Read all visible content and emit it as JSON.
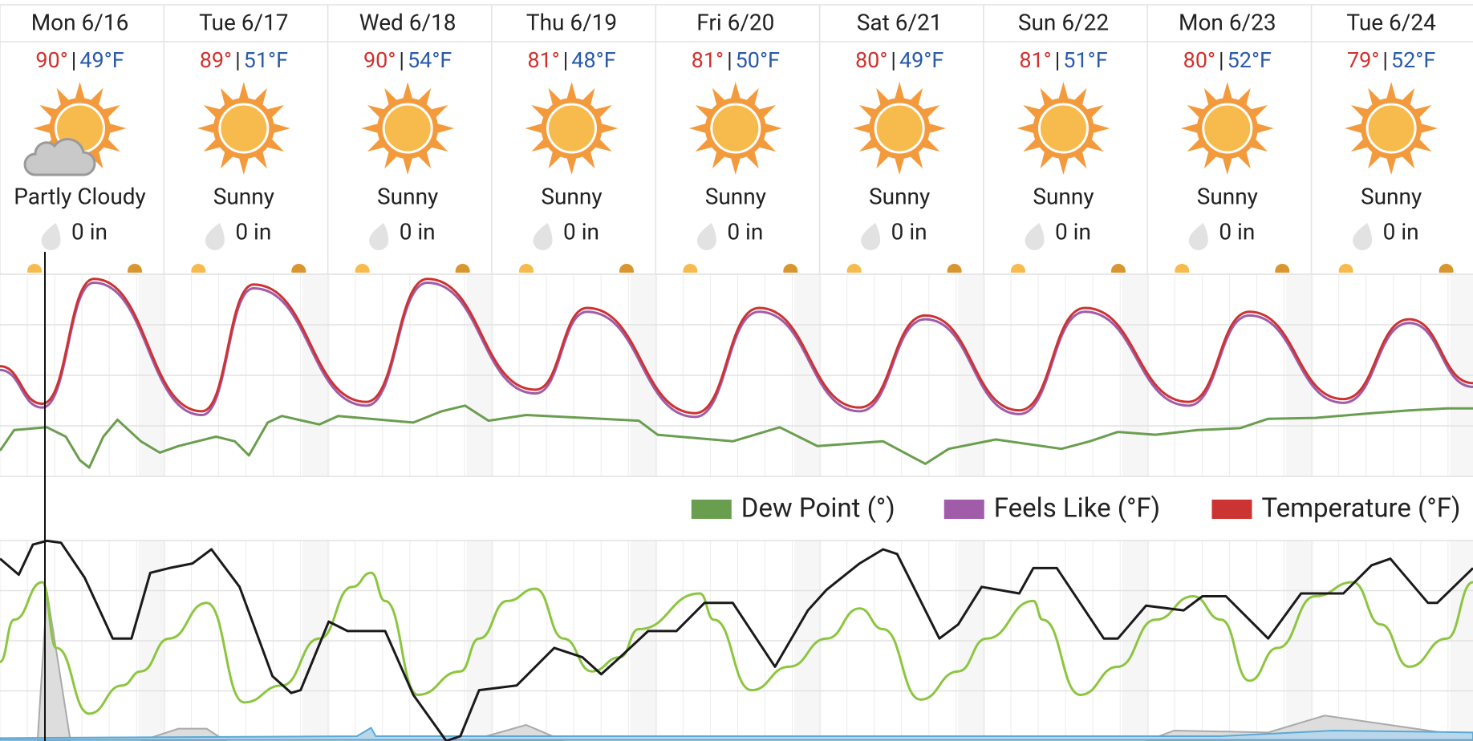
{
  "separator": "|",
  "days": [
    {
      "day": "Mon 6/16",
      "high": "90°",
      "low": "49°F",
      "condition": "Partly Cloudy",
      "precip": "0 in"
    },
    {
      "day": "Tue 6/17",
      "high": "89°",
      "low": "51°F",
      "condition": "Sunny",
      "precip": "0 in"
    },
    {
      "day": "Wed 6/18",
      "high": "90°",
      "low": "54°F",
      "condition": "Sunny",
      "precip": "0 in"
    },
    {
      "day": "Thu 6/19",
      "high": "81°",
      "low": "48°F",
      "condition": "Sunny",
      "precip": "0 in"
    },
    {
      "day": "Fri 6/20",
      "high": "81°",
      "low": "50°F",
      "condition": "Sunny",
      "precip": "0 in"
    },
    {
      "day": "Sat 6/21",
      "high": "80°",
      "low": "49°F",
      "condition": "Sunny",
      "precip": "0 in"
    },
    {
      "day": "Sun 6/22",
      "high": "81°",
      "low": "51°F",
      "condition": "Sunny",
      "precip": "0 in"
    },
    {
      "day": "Mon 6/23",
      "high": "80°",
      "low": "52°F",
      "condition": "Sunny",
      "precip": "0 in"
    },
    {
      "day": "Tue 6/24",
      "high": "79°",
      "low": "52°F",
      "condition": "Sunny",
      "precip": "0 in"
    }
  ],
  "legend": [
    {
      "name": "Dew Point (°)",
      "color": "#6a9e4f"
    },
    {
      "name": "Feels Like (°F)",
      "color": "#a05ca8"
    },
    {
      "name": "Temperature (°F)",
      "color": "#cc3333"
    }
  ]
}
